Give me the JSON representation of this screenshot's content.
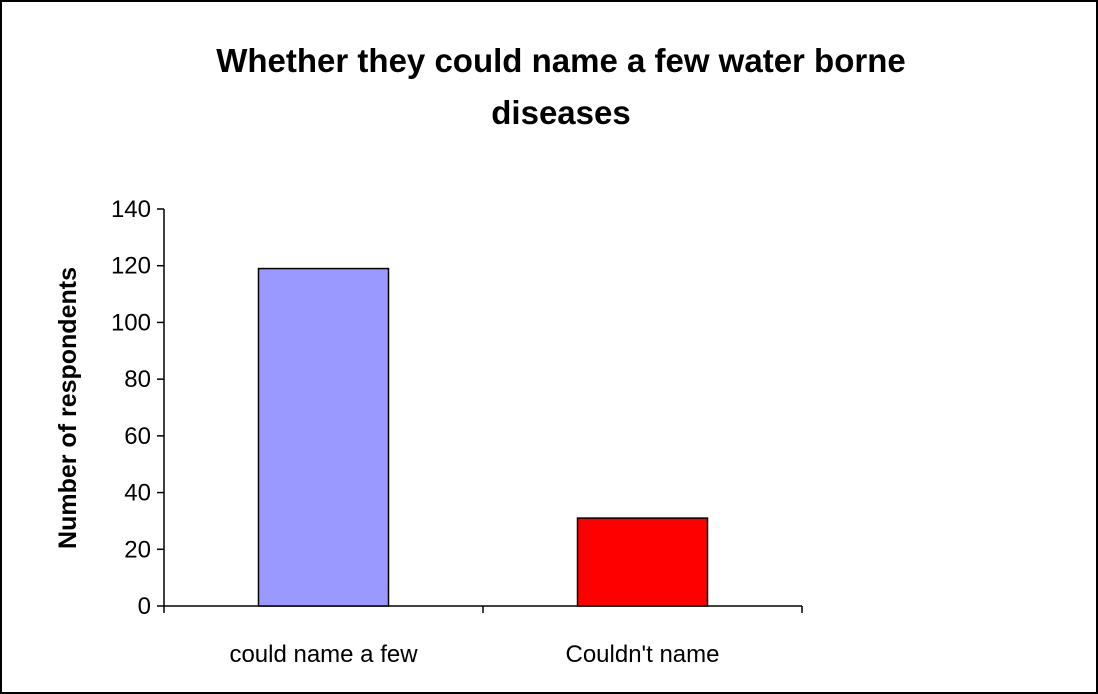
{
  "chart_data": {
    "type": "bar",
    "title": "Whether they could name a few water borne diseases",
    "title_lines": [
      "Whether they could name a few water borne",
      "diseases"
    ],
    "xlabel": "",
    "ylabel": "Number of respondents",
    "categories": [
      "could name a few",
      "Couldn't name"
    ],
    "values": [
      119,
      31
    ],
    "colors": [
      "#9999ff",
      "#ff0000"
    ],
    "ylim": [
      0,
      140
    ],
    "yticks": [
      0,
      20,
      40,
      60,
      80,
      100,
      120,
      140
    ],
    "grid": false,
    "legend": "none"
  }
}
